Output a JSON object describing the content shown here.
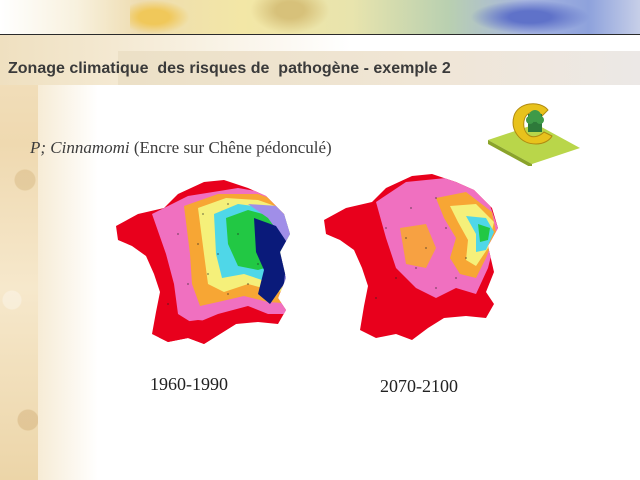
{
  "slide": {
    "title": "Zonage climatique  des risques de  pathogène - exemple 2",
    "subtitle_italic": "P; Cinnamomi",
    "subtitle_rest": " (Encre sur Chêne pédonculé)",
    "maps": [
      {
        "caption": "1960-1990",
        "icon": "france-risk-map"
      },
      {
        "caption": "2070-2100",
        "icon": "france-risk-map"
      }
    ],
    "logo_icon": "c-logo-icon"
  },
  "colors": {
    "title_text": "#3a3a3a",
    "risk_high": "#e8001c",
    "risk_pink": "#f070c0",
    "risk_orange": "#f7a634",
    "risk_yellow": "#f5f07a",
    "risk_cyan": "#4fd7e8",
    "risk_green": "#22c844",
    "risk_violet": "#a08ee8",
    "risk_navy": "#0a1a7a"
  }
}
